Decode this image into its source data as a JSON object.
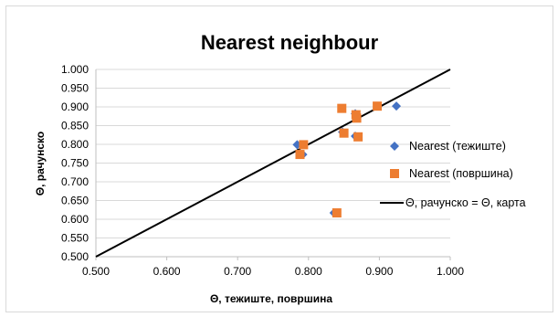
{
  "chart_data": {
    "type": "scatter",
    "title": "Nearest  neighbour",
    "xlabel": "Θ, тежиште, површина",
    "ylabel": "Θ, рачунско",
    "xlim": [
      0.5,
      1.0
    ],
    "ylim": [
      0.5,
      1.0
    ],
    "x_ticks": [
      "0.500",
      "0.600",
      "0.700",
      "0.800",
      "0.900",
      "1.000"
    ],
    "y_ticks": [
      "0.500",
      "0.550",
      "0.600",
      "0.650",
      "0.700",
      "0.750",
      "0.800",
      "0.850",
      "0.900",
      "0.950",
      "1.000"
    ],
    "grid": "horizontal",
    "legend_position": "right",
    "series": [
      {
        "name": "Nearest (тежиште)",
        "marker": "diamond",
        "color": "#4472c4",
        "points": [
          {
            "x": 0.924,
            "y": 0.902
          },
          {
            "x": 0.784,
            "y": 0.799
          },
          {
            "x": 0.792,
            "y": 0.773
          },
          {
            "x": 0.848,
            "y": 0.833
          },
          {
            "x": 0.866,
            "y": 0.882
          },
          {
            "x": 0.866,
            "y": 0.822
          },
          {
            "x": 0.836,
            "y": 0.617
          }
        ]
      },
      {
        "name": "Nearest (површина)",
        "marker": "square",
        "color": "#ed7d31",
        "points": [
          {
            "x": 0.897,
            "y": 0.902
          },
          {
            "x": 0.847,
            "y": 0.896
          },
          {
            "x": 0.867,
            "y": 0.879
          },
          {
            "x": 0.868,
            "y": 0.87
          },
          {
            "x": 0.85,
            "y": 0.83
          },
          {
            "x": 0.87,
            "y": 0.82
          },
          {
            "x": 0.793,
            "y": 0.799
          },
          {
            "x": 0.788,
            "y": 0.773
          },
          {
            "x": 0.84,
            "y": 0.617
          }
        ]
      },
      {
        "name": "Θ, рачунско = Θ, карта",
        "marker": "line",
        "color": "#000000",
        "points": [
          {
            "x": 0.5,
            "y": 0.5
          },
          {
            "x": 1.0,
            "y": 1.0
          }
        ]
      }
    ]
  }
}
